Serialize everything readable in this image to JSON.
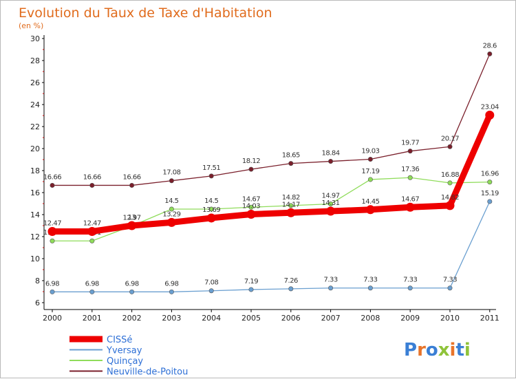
{
  "chart_data": {
    "type": "line",
    "title": "Evolution du Taux de Taxe d'Habitation",
    "subtitle": "(en %)",
    "x": [
      "2000",
      "2001",
      "2002",
      "2003",
      "2004",
      "2005",
      "2006",
      "2007",
      "2008",
      "2009",
      "2010",
      "2011"
    ],
    "yticks": [
      6,
      8,
      10,
      12,
      14,
      16,
      18,
      20,
      22,
      24,
      26,
      28,
      30
    ],
    "ylim": [
      6,
      30
    ],
    "grid": false,
    "legend_position": "bottom-left",
    "series": [
      {
        "name": "Neuville-de-Poitou",
        "color": "#7a1f2b",
        "values": [
          16.66,
          16.66,
          16.66,
          17.08,
          17.51,
          18.12,
          18.65,
          18.84,
          19.03,
          19.77,
          20.17,
          28.6
        ],
        "labels": [
          "16.66",
          "16.66",
          "16.66",
          "17.08",
          "17.51",
          "18.12",
          "18.65",
          "18.84",
          "19.03",
          "19.77",
          "20.17",
          "28.6"
        ]
      },
      {
        "name": "Quinçay",
        "color": "#8fdc5a",
        "values": [
          11.61,
          11.61,
          12.97,
          14.5,
          14.5,
          14.67,
          14.82,
          14.97,
          17.19,
          17.36,
          16.88,
          16.96
        ],
        "labels": [
          "11.61",
          "11.61",
          "12.97",
          "14.5",
          "14.5",
          "14.67",
          "14.82",
          "14.97",
          "17.19",
          "17.36",
          "16.88",
          "16.96"
        ]
      },
      {
        "name": "Yversay",
        "color": "#6a9fd0",
        "values": [
          6.98,
          6.98,
          6.98,
          6.98,
          7.08,
          7.19,
          7.26,
          7.33,
          7.33,
          7.33,
          7.33,
          15.19
        ],
        "labels": [
          "6.98",
          "6.98",
          "6.98",
          "6.98",
          "7.08",
          "7.19",
          "7.26",
          "7.33",
          "7.33",
          "7.33",
          "7.33",
          "15.19"
        ]
      },
      {
        "name": "CISSé",
        "color": "#ee0000",
        "values": [
          12.47,
          12.47,
          13.0,
          13.29,
          13.69,
          14.03,
          14.17,
          14.31,
          14.45,
          14.67,
          14.82,
          23.04
        ],
        "labels": [
          "12.47",
          "12.47",
          "13",
          "13.29",
          "13.69",
          "14.03",
          "14.17",
          "14.31",
          "14.45",
          "14.67",
          "14.82",
          "23.04"
        ]
      }
    ],
    "legend_order": [
      "CISSé",
      "Yversay",
      "Quinçay",
      "Neuville-de-Poitou"
    ]
  },
  "logo": {
    "text": "Proxiti",
    "colors": [
      "#3a7fd5",
      "#e8742a",
      "#3a7fd5",
      "#8fc33a",
      "#e8742a",
      "#3a7fd5",
      "#8fc33a"
    ]
  }
}
